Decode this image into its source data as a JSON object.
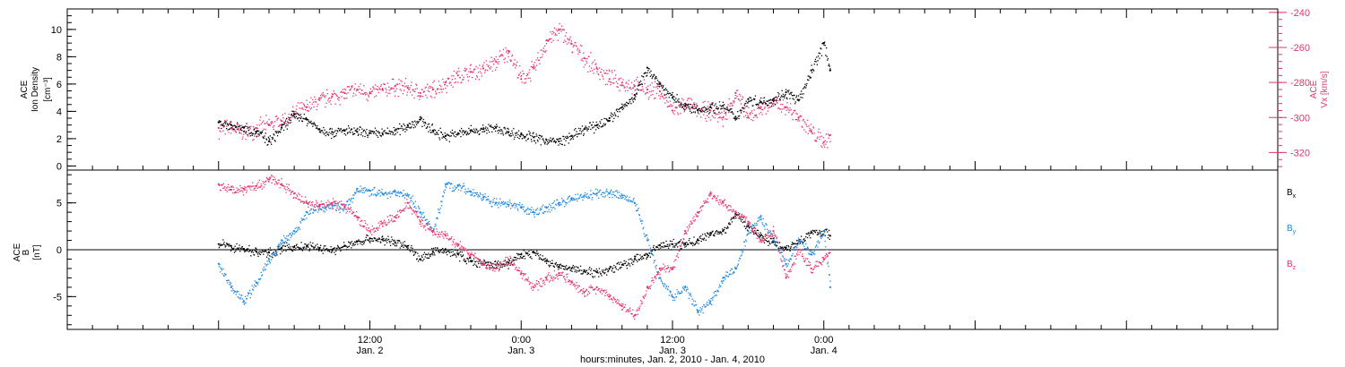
{
  "colors": {
    "black": "#000000",
    "blue": "#1e88e5",
    "pink": "#e8336b"
  },
  "xaxis": {
    "range_hours": [
      -12,
      84
    ],
    "title": "hours:minutes, Jan. 2, 2010 - Jan. 4, 2010",
    "ticks": [
      {
        "hour": 12,
        "time": "12:00",
        "day": "Jan. 2"
      },
      {
        "hour": 24,
        "time": "0:00",
        "day": "Jan. 3"
      },
      {
        "hour": 36,
        "time": "12:00",
        "day": "Jan. 3"
      },
      {
        "hour": 48,
        "time": "0:00",
        "day": "Jan. 4"
      }
    ]
  },
  "chart_data": [
    {
      "type": "scatter",
      "title": "",
      "ylabel_left": [
        "ACE",
        "Ion Density",
        "[cm⁻³]"
      ],
      "ylabel_right": [
        "ACE",
        "Vx [km/s]"
      ],
      "xlim_hours": [
        -12,
        84
      ],
      "ylim_left": [
        -0.3,
        11.5
      ],
      "ylim_right": [
        -330,
        -238
      ],
      "left_ticks": [
        "0",
        "2",
        "4",
        "6",
        "8",
        "10"
      ],
      "right_ticks": [
        "-320",
        "-300",
        "-280",
        "-260",
        "-240"
      ],
      "series": [
        {
          "axis": "left",
          "color": "#000000",
          "points": [
            [
              0,
              3.2
            ],
            [
              1,
              3.0
            ],
            [
              2,
              2.8
            ],
            [
              3,
              2.5
            ],
            [
              4,
              1.8
            ],
            [
              5,
              2.8
            ],
            [
              6,
              3.8
            ],
            [
              7,
              3.4
            ],
            [
              8,
              2.7
            ],
            [
              9,
              2.5
            ],
            [
              10,
              2.6
            ],
            [
              11,
              2.5
            ],
            [
              12,
              2.4
            ],
            [
              13,
              2.4
            ],
            [
              14,
              2.6
            ],
            [
              15,
              3.0
            ],
            [
              16,
              3.4
            ],
            [
              17,
              2.6
            ],
            [
              18,
              2.2
            ],
            [
              19,
              2.4
            ],
            [
              20,
              2.6
            ],
            [
              21,
              2.7
            ],
            [
              22,
              2.8
            ],
            [
              23,
              2.5
            ],
            [
              24,
              2.3
            ],
            [
              25,
              2.1
            ],
            [
              26,
              1.9
            ],
            [
              27,
              1.8
            ],
            [
              28,
              2.2
            ],
            [
              29,
              2.7
            ],
            [
              30,
              3.0
            ],
            [
              31,
              3.5
            ],
            [
              32,
              4.3
            ],
            [
              33,
              5.2
            ],
            [
              34,
              7.2
            ],
            [
              35,
              6.0
            ],
            [
              36,
              5.0
            ],
            [
              37,
              4.4
            ],
            [
              38,
              4.1
            ],
            [
              39,
              4.3
            ],
            [
              40,
              4.4
            ],
            [
              41,
              3.6
            ],
            [
              42,
              4.9
            ],
            [
              43,
              4.7
            ],
            [
              44,
              4.9
            ],
            [
              45,
              5.4
            ],
            [
              46,
              4.8
            ],
            [
              47,
              7.0
            ],
            [
              48,
              9.0
            ],
            [
              48.5,
              7.0
            ]
          ]
        },
        {
          "axis": "right",
          "color": "#e8336b",
          "points": [
            [
              0,
              -306
            ],
            [
              1,
              -306
            ],
            [
              2,
              -308
            ],
            [
              3,
              -306
            ],
            [
              4,
              -304
            ],
            [
              5,
              -302
            ],
            [
              6,
              -298
            ],
            [
              7,
              -294
            ],
            [
              8,
              -290
            ],
            [
              9,
              -288
            ],
            [
              10,
              -286
            ],
            [
              11,
              -284
            ],
            [
              12,
              -286
            ],
            [
              13,
              -284
            ],
            [
              14,
              -282
            ],
            [
              15,
              -283
            ],
            [
              16,
              -286
            ],
            [
              17,
              -284
            ],
            [
              18,
              -280
            ],
            [
              19,
              -276
            ],
            [
              20,
              -274
            ],
            [
              21,
              -272
            ],
            [
              22,
              -268
            ],
            [
              23,
              -262
            ],
            [
              24,
              -278
            ],
            [
              25,
              -272
            ],
            [
              26,
              -256
            ],
            [
              27,
              -250
            ],
            [
              28,
              -258
            ],
            [
              29,
              -266
            ],
            [
              30,
              -272
            ],
            [
              31,
              -278
            ],
            [
              32,
              -280
            ],
            [
              33,
              -282
            ],
            [
              34,
              -284
            ],
            [
              35,
              -285
            ],
            [
              36,
              -296
            ],
            [
              37,
              -292
            ],
            [
              38,
              -296
            ],
            [
              39,
              -296
            ],
            [
              40,
              -300
            ],
            [
              41,
              -286
            ],
            [
              42,
              -300
            ],
            [
              43,
              -294
            ],
            [
              44,
              -292
            ],
            [
              45,
              -294
            ],
            [
              46,
              -300
            ],
            [
              47,
              -308
            ],
            [
              48,
              -314
            ],
            [
              48.5,
              -310
            ]
          ]
        }
      ]
    },
    {
      "type": "scatter",
      "title": "",
      "ylabel_left": [
        "ACE",
        "B",
        "[nT]"
      ],
      "xlim_hours": [
        -12,
        84
      ],
      "ylim": [
        -8.5,
        8.5
      ],
      "left_ticks": [
        "-5",
        "0",
        "5"
      ],
      "legend_position": "right",
      "series": [
        {
          "name": "Bx",
          "color": "#000000",
          "points": [
            [
              0,
              0.6
            ],
            [
              1,
              0.4
            ],
            [
              2,
              0.1
            ],
            [
              3,
              -0.2
            ],
            [
              4,
              -0.3
            ],
            [
              5,
              0.2
            ],
            [
              6,
              0.3
            ],
            [
              7,
              0.4
            ],
            [
              8,
              0.2
            ],
            [
              9,
              0.0
            ],
            [
              10,
              0.4
            ],
            [
              11,
              0.9
            ],
            [
              12,
              1.2
            ],
            [
              13,
              1.1
            ],
            [
              14,
              0.8
            ],
            [
              15,
              0.4
            ],
            [
              16,
              -1.0
            ],
            [
              17,
              -0.2
            ],
            [
              18,
              0.0
            ],
            [
              19,
              -0.5
            ],
            [
              20,
              -1.2
            ],
            [
              21,
              -1.5
            ],
            [
              22,
              -1.6
            ],
            [
              23,
              -1.4
            ],
            [
              24,
              -0.5
            ],
            [
              25,
              -0.3
            ],
            [
              26,
              -1.2
            ],
            [
              27,
              -1.8
            ],
            [
              28,
              -2.0
            ],
            [
              29,
              -2.2
            ],
            [
              30,
              -2.4
            ],
            [
              31,
              -2.0
            ],
            [
              32,
              -1.6
            ],
            [
              33,
              -1.0
            ],
            [
              34,
              -0.5
            ],
            [
              35,
              0.5
            ],
            [
              36,
              0.6
            ],
            [
              37,
              0.7
            ],
            [
              38,
              1.0
            ],
            [
              39,
              1.8
            ],
            [
              40,
              2.0
            ],
            [
              41,
              3.8
            ],
            [
              42,
              2.5
            ],
            [
              43,
              1.5
            ],
            [
              44,
              0.8
            ],
            [
              45,
              0.2
            ],
            [
              46,
              1.0
            ],
            [
              47,
              1.8
            ],
            [
              48,
              2.0
            ],
            [
              48.5,
              1.5
            ]
          ]
        },
        {
          "name": "By",
          "color": "#1e88e5",
          "points": [
            [
              0,
              -1.5
            ],
            [
              1,
              -4.0
            ],
            [
              2,
              -5.5
            ],
            [
              3,
              -3.5
            ],
            [
              4,
              -1.0
            ],
            [
              5,
              1.0
            ],
            [
              6,
              2.0
            ],
            [
              7,
              4.0
            ],
            [
              8,
              4.6
            ],
            [
              9,
              4.8
            ],
            [
              10,
              4.5
            ],
            [
              11,
              6.5
            ],
            [
              12,
              6.3
            ],
            [
              13,
              6.0
            ],
            [
              14,
              6.2
            ],
            [
              15,
              5.8
            ],
            [
              16,
              4.0
            ],
            [
              17,
              2.0
            ],
            [
              18,
              7.0
            ],
            [
              19,
              6.8
            ],
            [
              20,
              6.2
            ],
            [
              21,
              5.6
            ],
            [
              22,
              5.0
            ],
            [
              23,
              4.8
            ],
            [
              24,
              4.5
            ],
            [
              25,
              4.0
            ],
            [
              26,
              4.5
            ],
            [
              27,
              5.0
            ],
            [
              28,
              5.5
            ],
            [
              29,
              5.8
            ],
            [
              30,
              6.0
            ],
            [
              31,
              6.0
            ],
            [
              32,
              5.8
            ],
            [
              33,
              5.0
            ],
            [
              34,
              1.0
            ],
            [
              35,
              -3.0
            ],
            [
              36,
              -5.0
            ],
            [
              37,
              -4.0
            ],
            [
              38,
              -6.5
            ],
            [
              39,
              -5.5
            ],
            [
              40,
              -3.0
            ],
            [
              41,
              -2.0
            ],
            [
              42,
              2.0
            ],
            [
              43,
              3.5
            ],
            [
              44,
              1.0
            ],
            [
              45,
              -1.5
            ],
            [
              46,
              1.0
            ],
            [
              47,
              -0.5
            ],
            [
              48,
              2.0
            ],
            [
              48.5,
              -4.0
            ]
          ]
        },
        {
          "name": "Bz",
          "color": "#e8336b",
          "points": [
            [
              0,
              7.0
            ],
            [
              1,
              6.4
            ],
            [
              2,
              6.5
            ],
            [
              3,
              6.8
            ],
            [
              4,
              7.5
            ],
            [
              5,
              7.0
            ],
            [
              6,
              6.0
            ],
            [
              7,
              5.0
            ],
            [
              8,
              4.8
            ],
            [
              9,
              5.0
            ],
            [
              10,
              4.6
            ],
            [
              11,
              3.5
            ],
            [
              12,
              2.0
            ],
            [
              13,
              2.8
            ],
            [
              14,
              3.5
            ],
            [
              15,
              5.0
            ],
            [
              16,
              3.0
            ],
            [
              17,
              2.0
            ],
            [
              18,
              1.5
            ],
            [
              19,
              0.5
            ],
            [
              20,
              -0.5
            ],
            [
              21,
              -1.5
            ],
            [
              22,
              -2.0
            ],
            [
              23,
              -1.0
            ],
            [
              24,
              -2.5
            ],
            [
              25,
              -4.0
            ],
            [
              26,
              -3.0
            ],
            [
              27,
              -2.5
            ],
            [
              28,
              -3.5
            ],
            [
              29,
              -4.5
            ],
            [
              30,
              -4.0
            ],
            [
              31,
              -5.0
            ],
            [
              32,
              -6.0
            ],
            [
              33,
              -7.0
            ],
            [
              34,
              -4.0
            ],
            [
              35,
              -2.0
            ],
            [
              36,
              -2.0
            ],
            [
              37,
              2.0
            ],
            [
              38,
              4.0
            ],
            [
              39,
              6.0
            ],
            [
              40,
              5.0
            ],
            [
              41,
              4.0
            ],
            [
              42,
              3.0
            ],
            [
              43,
              1.0
            ],
            [
              44,
              2.0
            ],
            [
              45,
              -3.0
            ],
            [
              46,
              0.0
            ],
            [
              47,
              -2.0
            ],
            [
              48,
              -1.0
            ],
            [
              48.5,
              0.0
            ]
          ]
        }
      ]
    }
  ]
}
